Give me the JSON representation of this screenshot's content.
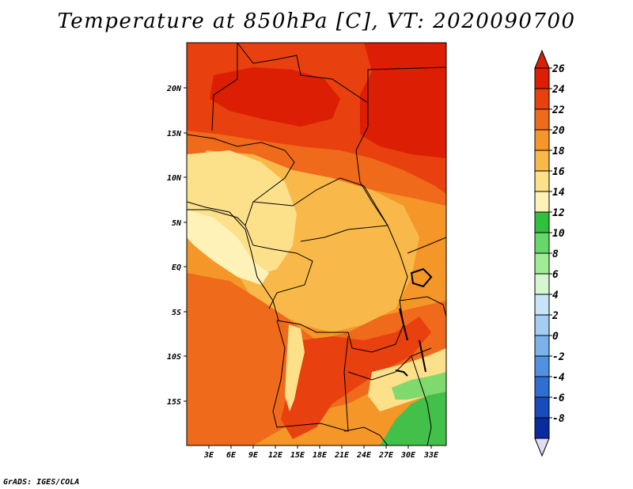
{
  "title": "Temperature at 850hPa [C], VT: 2020090700",
  "credit": "GrADS: IGES/COLA",
  "map": {
    "lat_labels": [
      "20N",
      "15N",
      "10N",
      "5N",
      "EQ",
      "5S",
      "10S",
      "15S"
    ],
    "lon_labels": [
      "3E",
      "6E",
      "9E",
      "12E",
      "15E",
      "18E",
      "21E",
      "24E",
      "27E",
      "30E",
      "33E"
    ],
    "field_colors": {
      "t26": "#dc1e04",
      "t24": "#e8400e",
      "t22": "#ef6a1a",
      "t20": "#f49628",
      "t18": "#f9b94a",
      "t16": "#fde08a",
      "t14": "#fef2b8",
      "t12": "#43c04a",
      "t10": "#7fd96d"
    }
  },
  "colorbar": {
    "labels": [
      "26",
      "24",
      "22",
      "20",
      "18",
      "16",
      "14",
      "12",
      "10",
      "8",
      "6",
      "4",
      "2",
      "0",
      "-2",
      "-4",
      "-6",
      "-8"
    ],
    "colors": [
      "#dc1e04",
      "#e8400e",
      "#ef6a1a",
      "#f49628",
      "#f9b94a",
      "#fde08a",
      "#fef2b8",
      "#31c03c",
      "#66d86a",
      "#a0ec96",
      "#d6f6d0",
      "#c8e4fa",
      "#a4cdf4",
      "#7ab2ec",
      "#5092e2",
      "#2f6fd4",
      "#184cbc",
      "#0a2aa0",
      "#0a0a6e"
    ],
    "overflow_high": "#dc1e04",
    "overflow_low": "#e0dcf4"
  }
}
